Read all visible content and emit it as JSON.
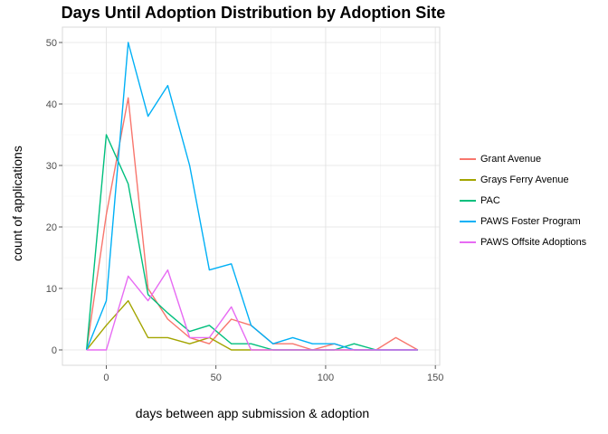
{
  "chart_data": {
    "type": "line",
    "title": "Days Until Adoption Distribution by Adoption Site",
    "xlabel": "days between app submission & adoption",
    "ylabel": "count of applications",
    "xlim": [
      -20,
      152
    ],
    "ylim": [
      -2.5,
      52.5
    ],
    "xticks": [
      0,
      50,
      100,
      150
    ],
    "yticks": [
      0,
      10,
      20,
      30,
      40,
      50
    ],
    "grid": true,
    "legend_position": "right",
    "series": [
      {
        "name": "Grant Avenue",
        "color": "#f8766d",
        "x": [
          -9,
          0,
          10,
          19,
          28,
          38,
          47,
          57,
          66,
          76,
          85,
          94,
          104,
          113,
          123,
          132,
          142
        ],
        "y": [
          0,
          22,
          41,
          10,
          5,
          2,
          1,
          5,
          4,
          1,
          1,
          0,
          1,
          0,
          0,
          2,
          0
        ]
      },
      {
        "name": "Grays Ferry Avenue",
        "color": "#a3a500",
        "x": [
          -9,
          0,
          10,
          19,
          28,
          38,
          47,
          57,
          66,
          76,
          85,
          94,
          104,
          113,
          123,
          132,
          142
        ],
        "y": [
          0,
          4,
          8,
          2,
          2,
          1,
          2,
          0,
          0,
          0,
          0,
          0,
          0,
          0,
          0,
          0,
          0
        ]
      },
      {
        "name": "PAC",
        "color": "#00bf7d",
        "x": [
          -9,
          0,
          10,
          19,
          28,
          38,
          47,
          57,
          66,
          76,
          85,
          94,
          104,
          113,
          123,
          132,
          142
        ],
        "y": [
          0,
          35,
          27,
          9,
          6,
          3,
          4,
          1,
          1,
          0,
          0,
          0,
          0,
          1,
          0,
          0,
          0
        ]
      },
      {
        "name": "PAWS Foster Program",
        "color": "#00b0f6",
        "x": [
          -9,
          0,
          10,
          19,
          28,
          38,
          47,
          57,
          66,
          76,
          85,
          94,
          104,
          113,
          123,
          132,
          142
        ],
        "y": [
          0,
          8,
          50,
          38,
          43,
          30,
          13,
          14,
          4,
          1,
          2,
          1,
          1,
          0,
          0,
          0,
          0
        ]
      },
      {
        "name": "PAWS Offsite Adoptions",
        "color": "#e76bf3",
        "x": [
          -9,
          0,
          10,
          19,
          28,
          38,
          47,
          57,
          66,
          76,
          85,
          94,
          104,
          113,
          123,
          132,
          142
        ],
        "y": [
          0,
          0,
          12,
          8,
          13,
          2,
          2,
          7,
          0,
          0,
          0,
          0,
          0,
          0,
          0,
          0,
          0
        ]
      }
    ]
  }
}
